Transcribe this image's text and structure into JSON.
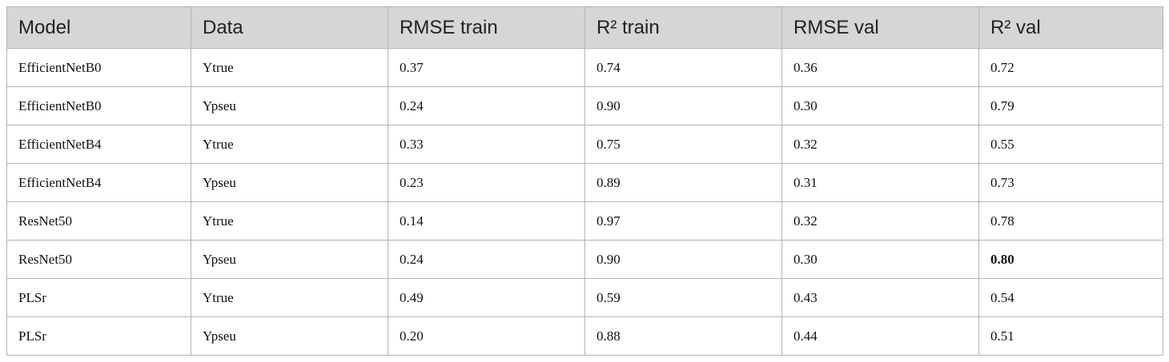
{
  "table": {
    "header": [
      "Model",
      "Data",
      "RMSE train",
      "R² train",
      "RMSE val",
      "R² val"
    ],
    "rows": [
      [
        "EfficientNetB0",
        "Ytrue",
        "0.37",
        "0.74",
        "0.36",
        "0.72"
      ],
      [
        "EfficientNetB0",
        "Ypseu",
        "0.24",
        "0.90",
        "0.30",
        "0.79"
      ],
      [
        "EfficientNetB4",
        "Ytrue",
        "0.33",
        "0.75",
        "0.32",
        "0.55"
      ],
      [
        "EfficientNetB4",
        "Ypseu",
        "0.23",
        "0.89",
        "0.31",
        "0.73"
      ],
      [
        "ResNet50",
        "Ytrue",
        "0.14",
        "0.97",
        "0.32",
        "0.78"
      ],
      [
        "ResNet50",
        "Ypseu",
        "0.24",
        "0.90",
        "0.30",
        "0.80"
      ],
      [
        "PLSr",
        "Ytrue",
        "0.49",
        "0.59",
        "0.43",
        "0.54"
      ],
      [
        "PLSr",
        "Ypseu",
        "0.20",
        "0.88",
        "0.44",
        "0.51"
      ]
    ]
  }
}
